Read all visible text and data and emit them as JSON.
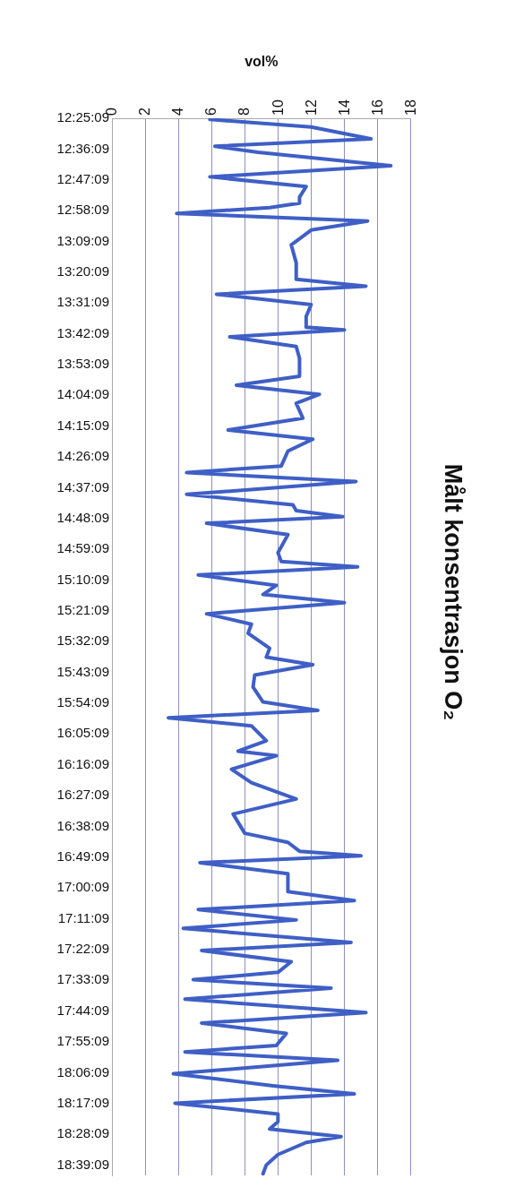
{
  "chart_data": {
    "type": "line",
    "title": "Målt konsentrasjon O₂",
    "xlabel": "vol%",
    "orientation": "horizontal",
    "x": [
      12.426,
      12.471,
      12.542,
      12.586,
      12.622,
      12.702,
      12.768,
      12.826,
      12.889,
      12.925,
      12.951,
      12.986,
      13.031,
      13.085,
      13.173,
      13.28,
      13.378,
      13.419,
      13.467,
      13.529,
      13.6,
      13.663,
      13.68,
      13.721,
      13.778,
      13.849,
      13.956,
      14.009,
      14.063,
      14.116,
      14.205,
      14.276,
      14.33,
      14.401,
      14.49,
      14.529,
      14.582,
      14.659,
      14.721,
      14.756,
      14.792,
      14.831,
      14.899,
      15.006,
      15.059,
      15.091,
      15.139,
      15.201,
      15.255,
      15.304,
      15.37,
      15.432,
      15.486,
      15.575,
      15.628,
      15.673,
      15.735,
      15.806,
      15.895,
      15.945,
      15.989,
      16.037,
      16.126,
      16.188,
      16.215,
      16.295,
      16.375,
      16.473,
      16.562,
      16.677,
      16.731,
      16.784,
      16.811,
      16.852,
      16.918,
      17.024,
      17.078,
      17.131,
      17.193,
      17.243,
      17.327,
      17.375,
      17.442,
      17.505,
      17.549,
      17.599,
      17.665,
      17.745,
      17.807,
      17.869,
      17.94,
      17.979,
      18.029,
      18.109,
      18.18,
      18.229,
      18.284,
      18.349,
      18.394,
      18.438,
      18.483,
      18.518,
      18.59,
      18.652,
      18.705
    ],
    "values": [
      5.9,
      12.0,
      15.6,
      6.2,
      8.8,
      16.8,
      5.9,
      11.7,
      11.3,
      11.3,
      9.5,
      3.9,
      15.4,
      12.0,
      10.8,
      11.1,
      11.1,
      15.3,
      6.3,
      12.0,
      11.7,
      11.7,
      14.0,
      7.1,
      11.1,
      11.3,
      11.3,
      7.5,
      12.5,
      11.1,
      11.5,
      7.0,
      12.1,
      10.6,
      10.2,
      4.5,
      14.7,
      4.5,
      10.9,
      11.1,
      13.9,
      5.7,
      10.6,
      10.0,
      10.2,
      14.8,
      5.2,
      9.9,
      9.1,
      14.0,
      5.7,
      8.4,
      8.2,
      9.5,
      9.3,
      12.1,
      8.6,
      8.5,
      9.1,
      12.4,
      3.4,
      8.4,
      9.3,
      7.6,
      9.9,
      7.2,
      8.4,
      11.1,
      7.3,
      8.0,
      10.6,
      11.3,
      15.0,
      5.3,
      10.6,
      10.6,
      14.6,
      5.2,
      11.1,
      4.3,
      14.4,
      5.4,
      10.8,
      10.0,
      4.9,
      13.2,
      4.4,
      15.3,
      5.4,
      10.5,
      9.9,
      4.4,
      13.6,
      3.7,
      9.7,
      14.6,
      3.8,
      10.0,
      10.0,
      9.5,
      13.8,
      11.7,
      10.0,
      9.3,
      9.1
    ],
    "color": "#3f5fc6",
    "marker": "none",
    "line_style": "solid",
    "ylim": [
      18.714,
      12.4192
    ],
    "yticks": [
      {
        "value": 12.4192,
        "label": "12:25:09"
      },
      {
        "value": 12.6025,
        "label": "12:36:09"
      },
      {
        "value": 12.7858,
        "label": "12:47:09"
      },
      {
        "value": 12.9692,
        "label": "12:58:09"
      },
      {
        "value": 13.1525,
        "label": "13:09:09"
      },
      {
        "value": 13.3358,
        "label": "13:20:09"
      },
      {
        "value": 13.5192,
        "label": "13:31:09"
      },
      {
        "value": 13.7025,
        "label": "13:42:09"
      },
      {
        "value": 13.8858,
        "label": "13:53:09"
      },
      {
        "value": 14.0692,
        "label": "14:04:09"
      },
      {
        "value": 14.2525,
        "label": "14:15:09"
      },
      {
        "value": 14.4358,
        "label": "14:26:09"
      },
      {
        "value": 14.6192,
        "label": "14:37:09"
      },
      {
        "value": 14.8025,
        "label": "14:48:09"
      },
      {
        "value": 14.9858,
        "label": "14:59:09"
      },
      {
        "value": 15.1692,
        "label": "15:10:09"
      },
      {
        "value": 15.3525,
        "label": "15:21:09"
      },
      {
        "value": 15.5358,
        "label": "15:32:09"
      },
      {
        "value": 15.7192,
        "label": "15:43:09"
      },
      {
        "value": 15.9025,
        "label": "15:54:09"
      },
      {
        "value": 16.0858,
        "label": "16:05:09"
      },
      {
        "value": 16.2692,
        "label": "16:16:09"
      },
      {
        "value": 16.4525,
        "label": "16:27:09"
      },
      {
        "value": 16.6358,
        "label": "16:38:09"
      },
      {
        "value": 16.8192,
        "label": "16:49:09"
      },
      {
        "value": 17.0025,
        "label": "17:00:09"
      },
      {
        "value": 17.1858,
        "label": "17:11:09"
      },
      {
        "value": 17.3692,
        "label": "17:22:09"
      },
      {
        "value": 17.5525,
        "label": "17:33:09"
      },
      {
        "value": 17.7358,
        "label": "17:44:09"
      },
      {
        "value": 17.9192,
        "label": "17:55:09"
      },
      {
        "value": 18.1025,
        "label": "18:06:09"
      },
      {
        "value": 18.2858,
        "label": "18:17:09"
      },
      {
        "value": 18.4692,
        "label": "18:28:09"
      },
      {
        "value": 18.6525,
        "label": "18:39:09"
      }
    ],
    "xlim": [
      0,
      18
    ],
    "xticks": [
      0,
      2,
      4,
      6,
      8,
      10,
      12,
      14,
      16,
      18
    ],
    "grid": "x"
  }
}
